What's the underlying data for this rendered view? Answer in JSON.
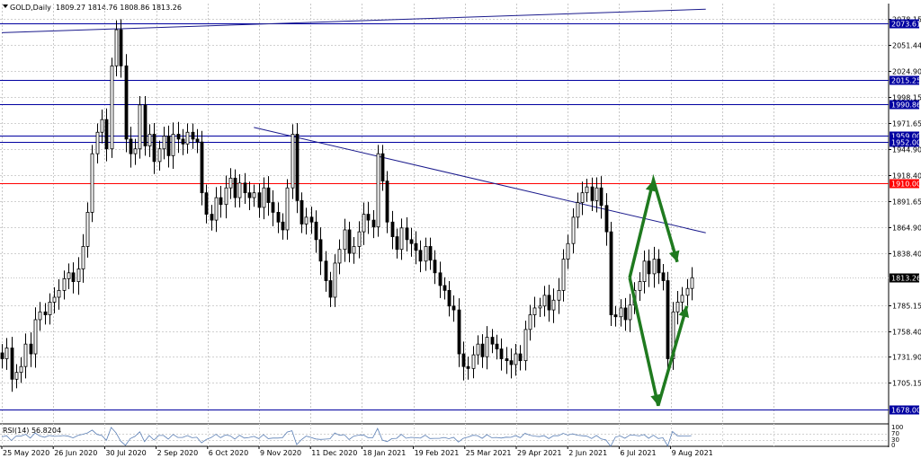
{
  "header": {
    "symbol": "GOLD,Daily",
    "ohlc": "1809.27 1814.76 1808.86 1813.26"
  },
  "rsi": {
    "label": "RSI(14) 56.8204",
    "ticks": [
      "100",
      "70",
      "30",
      "0"
    ]
  },
  "chart_data": {
    "type": "candlestick",
    "instrument": "GOLD",
    "timeframe": "Daily",
    "last_bar": {
      "open": 1809.27,
      "high": 1814.76,
      "low": 1808.86,
      "close": 1813.26
    },
    "current_price": 1813.26,
    "current_price_label": "1813.26",
    "ylim": [
      1678,
      2088
    ],
    "yticks": [
      {
        "value": 2078.15,
        "label": "2078.15"
      },
      {
        "value": 2051.44,
        "label": "2051.44"
      },
      {
        "value": 2024.9,
        "label": "2024.90"
      },
      {
        "value": 1998.15,
        "label": "1998.15"
      },
      {
        "value": 1971.65,
        "label": "1971.65"
      },
      {
        "value": 1944.9,
        "label": "1944.90"
      },
      {
        "value": 1918.4,
        "label": "1918.40"
      },
      {
        "value": 1891.65,
        "label": "1891.65"
      },
      {
        "value": 1864.9,
        "label": "1864.90"
      },
      {
        "value": 1838.4,
        "label": "1838.40"
      },
      {
        "value": 1785.15,
        "label": "1785.15"
      },
      {
        "value": 1758.4,
        "label": "1758.40"
      },
      {
        "value": 1731.9,
        "label": "1731.90"
      },
      {
        "value": 1705.15,
        "label": "1705.15"
      }
    ],
    "xticks": [
      "25 May 2020",
      "26 Jun 2020",
      "30 Jul 2020",
      "2 Sep 2020",
      "6 Oct 2020",
      "9 Nov 2020",
      "11 Dec 2020",
      "18 Jan 2021",
      "19 Feb 2021",
      "25 Mar 2021",
      "29 Apr 2021",
      "2 Jun 2021",
      "6 Jul 2021",
      "9 Aug 2021"
    ],
    "levels": [
      {
        "value": 2073.61,
        "label": "2073.61",
        "color": "#0000a0"
      },
      {
        "value": 2015.25,
        "label": "2015.25",
        "color": "#0000a0"
      },
      {
        "value": 1990.86,
        "label": "1990.86",
        "color": "#0000a0"
      },
      {
        "value": 1959.0,
        "label": "1959.00",
        "color": "#0000a0"
      },
      {
        "value": 1952.0,
        "label": "1952.00",
        "color": "#0000a0"
      },
      {
        "value": 1910.0,
        "label": "1910.00",
        "color": "#ff0000"
      },
      {
        "value": 1678.0,
        "label": "1678.00",
        "color": "#0000a0"
      }
    ],
    "trendlines": [
      {
        "name": "upper-trendline",
        "from": [
          0,
          2064
        ],
        "to": [
          148,
          2088
        ],
        "color": "#1a1a8c"
      },
      {
        "name": "descending-trendline",
        "from": [
          53,
          1967
        ],
        "to": [
          148,
          1859
        ],
        "color": "#1a1a8c"
      }
    ],
    "scenario_arrows": {
      "color": "#1f7a1f",
      "up_path": [
        [
          132,
          1813
        ],
        [
          137,
          1913
        ],
        [
          142,
          1829
        ]
      ],
      "down_path": [
        [
          132,
          1813
        ],
        [
          138,
          1682
        ],
        [
          144,
          1784
        ]
      ]
    },
    "closes": [
      1730,
      1741,
      1709,
      1716,
      1722,
      1745,
      1735,
      1770,
      1778,
      1775,
      1788,
      1793,
      1800,
      1812,
      1818,
      1809,
      1822,
      1845,
      1880,
      1940,
      1962,
      1975,
      1945,
      2030,
      2067,
      2030,
      1955,
      1940,
      1945,
      1990,
      1948,
      1960,
      1932,
      1945,
      1958,
      1938,
      1960,
      1955,
      1950,
      1962,
      1955,
      1952,
      1900,
      1878,
      1872,
      1895,
      1888,
      1905,
      1915,
      1895,
      1910,
      1900,
      1895,
      1900,
      1885,
      1905,
      1890,
      1880,
      1870,
      1862,
      1905,
      1960,
      1892,
      1868,
      1875,
      1870,
      1852,
      1830,
      1810,
      1793,
      1828,
      1842,
      1862,
      1838,
      1845,
      1860,
      1878,
      1872,
      1865,
      1940,
      1912,
      1870,
      1855,
      1842,
      1864,
      1852,
      1848,
      1841,
      1830,
      1845,
      1831,
      1818,
      1805,
      1800,
      1784,
      1780,
      1735,
      1722,
      1720,
      1734,
      1745,
      1732,
      1752,
      1745,
      1740,
      1730,
      1728,
      1724,
      1735,
      1728,
      1760,
      1775,
      1782,
      1784,
      1795,
      1780,
      1790,
      1800,
      1832,
      1848,
      1875,
      1890,
      1900,
      1906,
      1892,
      1905,
      1887,
      1860,
      1775,
      1773,
      1782,
      1770,
      1785,
      1800,
      1809,
      1830,
      1817,
      1832,
      1818,
      1810,
      1730,
      1778,
      1788,
      1795,
      1802,
      1813
    ],
    "n_bars": 150
  }
}
